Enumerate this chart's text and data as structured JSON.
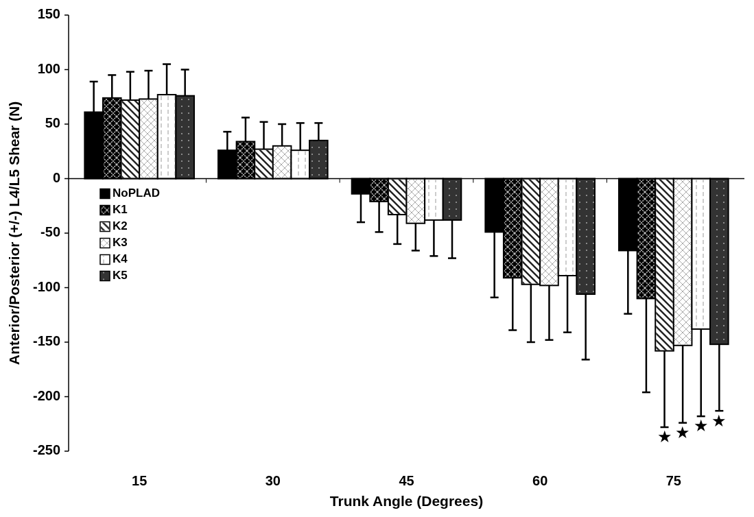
{
  "chart_data": {
    "type": "bar",
    "xlabel": "Trunk Angle (Degrees)",
    "ylabel": "Anterior/Posterior (+/-) L4/L5 Shear (N)",
    "categories": [
      "15",
      "30",
      "45",
      "60",
      "75"
    ],
    "series": [
      {
        "name": "NoPLAD",
        "color": "#000000",
        "values": [
          61,
          26,
          -14,
          -49,
          -66
        ],
        "errors": [
          [
            61,
            89
          ],
          [
            26,
            43
          ],
          [
            -40,
            -14
          ],
          [
            -109,
            -49
          ],
          [
            -124,
            -66
          ]
        ]
      },
      {
        "name": "K1",
        "color": "#000000",
        "values": [
          74,
          34,
          -21,
          -91,
          -110
        ],
        "errors": [
          [
            74,
            95
          ],
          [
            34,
            56
          ],
          [
            -49,
            -21
          ],
          [
            -139,
            -91
          ],
          [
            -196,
            -110
          ]
        ]
      },
      {
        "name": "K2",
        "color": "#ffffff",
        "values": [
          72,
          27,
          -33,
          -97,
          -158
        ],
        "errors": [
          [
            72,
            98
          ],
          [
            27,
            52
          ],
          [
            -60,
            -33
          ],
          [
            -150,
            -97
          ],
          [
            -228,
            -158
          ]
        ]
      },
      {
        "name": "K3",
        "color": "#ffffff",
        "values": [
          73,
          30,
          -41,
          -98,
          -153
        ],
        "errors": [
          [
            73,
            99
          ],
          [
            30,
            50
          ],
          [
            -66,
            -41
          ],
          [
            -148,
            -98
          ],
          [
            -224,
            -153
          ]
        ]
      },
      {
        "name": "K4",
        "color": "#ffffff",
        "values": [
          77,
          26,
          -38,
          -89,
          -138
        ],
        "errors": [
          [
            77,
            105
          ],
          [
            26,
            51
          ],
          [
            -71,
            -38
          ],
          [
            -141,
            -89
          ],
          [
            -218,
            -138
          ]
        ]
      },
      {
        "name": "K5",
        "color": "#333333",
        "values": [
          76,
          35,
          -38,
          -106,
          -152
        ],
        "errors": [
          [
            76,
            100
          ],
          [
            35,
            51
          ],
          [
            -73,
            -38
          ],
          [
            -166,
            -106
          ],
          [
            -213,
            -152
          ]
        ]
      }
    ],
    "annotations": [
      "★",
      "★",
      "★",
      "★"
    ],
    "ylim": [
      -250,
      150
    ],
    "yticks": [
      -250,
      -200,
      -150,
      -100,
      -50,
      0,
      50,
      100,
      150
    ],
    "legend": "left"
  }
}
